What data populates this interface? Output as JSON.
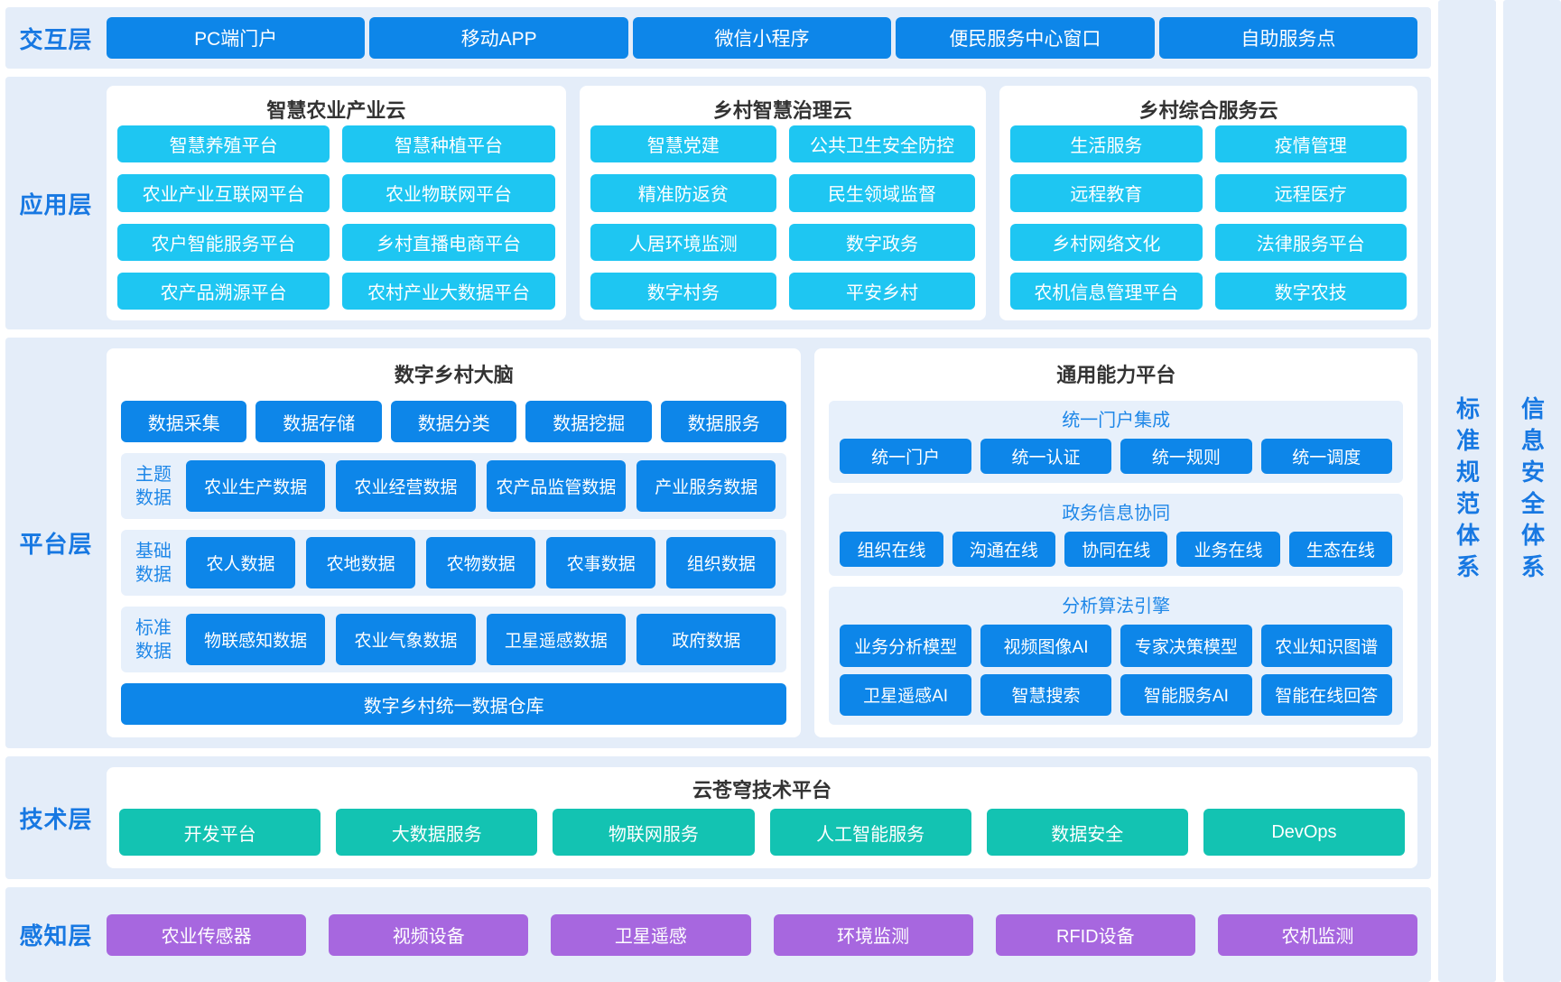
{
  "colors": {
    "band_bg": "#E4EDF9",
    "panel_bg": "#FFFFFF",
    "strip_bg": "#E7F0FB",
    "blue_block": "#0D86E9",
    "cyan_block": "#1EC6F2",
    "teal_block": "#13C3B2",
    "purple_block": "#A767DF",
    "layer_label_blue": "#1778E2",
    "section_heading_blue": "#1E87E8",
    "panel_title_dark": "#333333"
  },
  "layers": {
    "interaction": {
      "label": "交互层",
      "items": [
        "PC端门户",
        "移动APP",
        "微信小程序",
        "便民服务中心窗口",
        "自助服务点"
      ]
    },
    "application": {
      "label": "应用层",
      "clouds": [
        {
          "title": "智慧农业产业云",
          "items": [
            "智慧养殖平台",
            "智慧种植平台",
            "农业产业互联网平台",
            "农业物联网平台",
            "农户智能服务平台",
            "乡村直播电商平台",
            "农产品溯源平台",
            "农村产业大数据平台"
          ]
        },
        {
          "title": "乡村智慧治理云",
          "items": [
            "智慧党建",
            "公共卫生安全防控",
            "精准防返贫",
            "民生领域监督",
            "人居环境监测",
            "数字政务",
            "数字村务",
            "平安乡村"
          ]
        },
        {
          "title": "乡村综合服务云",
          "items": [
            "生活服务",
            "疫情管理",
            "远程教育",
            "远程医疗",
            "乡村网络文化",
            "法律服务平台",
            "农机信息管理平台",
            "数字农技"
          ]
        }
      ]
    },
    "platform": {
      "label": "平台层",
      "brain": {
        "title": "数字乡村大脑",
        "pipeline": [
          "数据采集",
          "数据存储",
          "数据分类",
          "数据挖掘",
          "数据服务"
        ],
        "groups": [
          {
            "label": "主题数据",
            "items": [
              "农业生产数据",
              "农业经营数据",
              "农产品监管数据",
              "产业服务数据"
            ]
          },
          {
            "label": "基础数据",
            "items": [
              "农人数据",
              "农地数据",
              "农物数据",
              "农事数据",
              "组织数据"
            ]
          },
          {
            "label": "标准数据",
            "items": [
              "物联感知数据",
              "农业气象数据",
              "卫星遥感数据",
              "政府数据"
            ]
          }
        ],
        "warehouse": "数字乡村统一数据仓库"
      },
      "capability": {
        "title": "通用能力平台",
        "sections": [
          {
            "heading": "统一门户集成",
            "rows": [
              [
                "统一门户",
                "统一认证",
                "统一规则",
                "统一调度"
              ]
            ]
          },
          {
            "heading": "政务信息协同",
            "rows": [
              [
                "组织在线",
                "沟通在线",
                "协同在线",
                "业务在线",
                "生态在线"
              ]
            ]
          },
          {
            "heading": "分析算法引擎",
            "rows": [
              [
                "业务分析模型",
                "视频图像AI",
                "专家决策模型",
                "农业知识图谱"
              ],
              [
                "卫星遥感AI",
                "智慧搜索",
                "智能服务AI",
                "智能在线回答"
              ]
            ]
          }
        ]
      }
    },
    "technology": {
      "label": "技术层",
      "title": "云苍穹技术平台",
      "items": [
        "开发平台",
        "大数据服务",
        "物联网服务",
        "人工智能服务",
        "数据安全",
        "DevOps"
      ]
    },
    "perception": {
      "label": "感知层",
      "items": [
        "农业传感器",
        "视频设备",
        "卫星遥感",
        "环境监测",
        "RFID设备",
        "农机监测"
      ]
    }
  },
  "side_systems": [
    "标准规范体系",
    "信息安全体系"
  ]
}
